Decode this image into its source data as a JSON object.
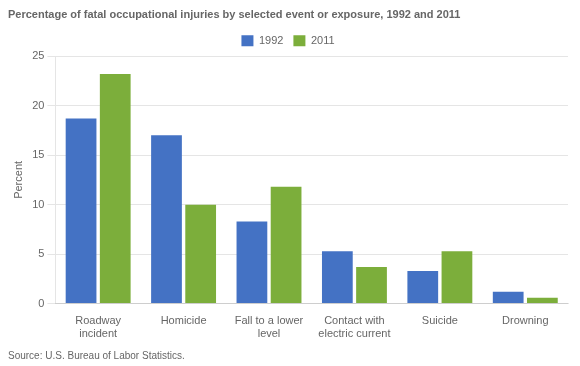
{
  "chart_data": {
    "type": "bar",
    "title": "Percentage of fatal occupational injuries by selected event or exposure, 1992 and 2011",
    "ylabel": "Percent",
    "categories": [
      "Roadway\nincident",
      "Homicide",
      "Fall to a lower\nlevel",
      "Contact with\nelectric current",
      "Suicide",
      "Drowning"
    ],
    "series": [
      {
        "name": "1992",
        "color": "#4472C4",
        "values": [
          18.7,
          17.0,
          8.3,
          5.3,
          3.3,
          1.2
        ]
      },
      {
        "name": "2011",
        "color": "#7CAE3B",
        "values": [
          23.2,
          10.0,
          11.8,
          3.7,
          5.3,
          0.6
        ]
      }
    ],
    "ylim": [
      0,
      25
    ],
    "yticks": [
      0,
      5,
      10,
      15,
      20,
      25
    ],
    "grid": true,
    "legend": "top",
    "annotations": [
      "Source: U.S. Bureau of Labor Statistics."
    ]
  }
}
